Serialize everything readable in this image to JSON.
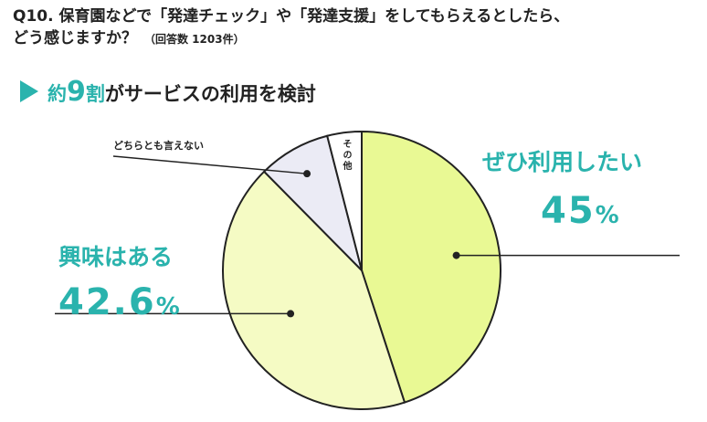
{
  "question": {
    "line1": "Q10. 保育園などで「発達チェック」や「発達支援」をしてもらえるとしたら、",
    "line2": "どう感じますか？",
    "count": "（回答数 1203件）"
  },
  "headline": {
    "prefix": "約",
    "number": "9",
    "suffix_accent": "割",
    "rest": "がサービスの利用を検討"
  },
  "chart_data": {
    "type": "pie",
    "title": "",
    "start": "top",
    "direction": "clockwise",
    "slices": [
      {
        "label": "ぜひ利用したい",
        "value": 45,
        "value_text": "45",
        "unit": "%",
        "color": "#e9f994"
      },
      {
        "label": "興味はある",
        "value": 42.6,
        "value_text": "42.6",
        "unit": "%",
        "color": "#f5fbc4"
      },
      {
        "label": "どちらとも言えない",
        "value": 8.4,
        "color": "#ebebf5"
      },
      {
        "label": "その他",
        "value": 4.0,
        "color": "#ffffff"
      }
    ]
  }
}
